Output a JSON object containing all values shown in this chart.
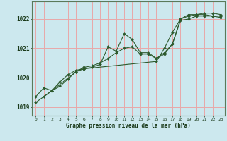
{
  "xlabel": "Graphe pression niveau de la mer (hPa)",
  "background_color": "#cce8ee",
  "grid_color": "#e8a8a8",
  "line_color": "#2d5a2d",
  "label_color": "#1a3a1a",
  "xlim": [
    -0.5,
    23.5
  ],
  "ylim": [
    1018.7,
    1022.6
  ],
  "yticks": [
    1019,
    1020,
    1021,
    1022
  ],
  "xticks": [
    0,
    1,
    2,
    3,
    4,
    5,
    6,
    7,
    8,
    9,
    10,
    11,
    12,
    13,
    14,
    15,
    16,
    17,
    18,
    19,
    20,
    21,
    22,
    23
  ],
  "series1_x": [
    0,
    1,
    2,
    3,
    4,
    5,
    6,
    7,
    8,
    9,
    10,
    11,
    12,
    13,
    14,
    15,
    16,
    17,
    18,
    19,
    20,
    21,
    22,
    23
  ],
  "series1_y": [
    1019.35,
    1019.65,
    1019.55,
    1019.85,
    1020.1,
    1020.25,
    1020.3,
    1020.35,
    1020.45,
    1021.05,
    1020.9,
    1021.5,
    1021.3,
    1020.85,
    1020.85,
    1020.65,
    1020.8,
    1021.15,
    1021.95,
    1022.0,
    1022.1,
    1022.1,
    1022.1,
    1022.1
  ],
  "series2_x": [
    0,
    2,
    5,
    6,
    7,
    8,
    9,
    10,
    11,
    12,
    13,
    14,
    15,
    16,
    17,
    18,
    19,
    20,
    21,
    22,
    23
  ],
  "series2_y": [
    1019.15,
    1019.55,
    1020.2,
    1020.35,
    1020.4,
    1020.5,
    1020.65,
    1020.85,
    1021.0,
    1021.05,
    1020.8,
    1020.8,
    1020.65,
    1020.85,
    1021.15,
    1022.0,
    1022.1,
    1022.15,
    1022.15,
    1022.1,
    1022.05
  ],
  "series3_x": [
    1,
    2,
    3,
    4,
    5,
    6,
    15,
    16,
    17,
    18,
    19,
    20,
    21,
    22,
    23
  ],
  "series3_y": [
    1019.35,
    1019.55,
    1019.7,
    1019.95,
    1020.2,
    1020.3,
    1020.55,
    1021.0,
    1021.55,
    1022.0,
    1022.15,
    1022.15,
    1022.2,
    1022.2,
    1022.15
  ]
}
